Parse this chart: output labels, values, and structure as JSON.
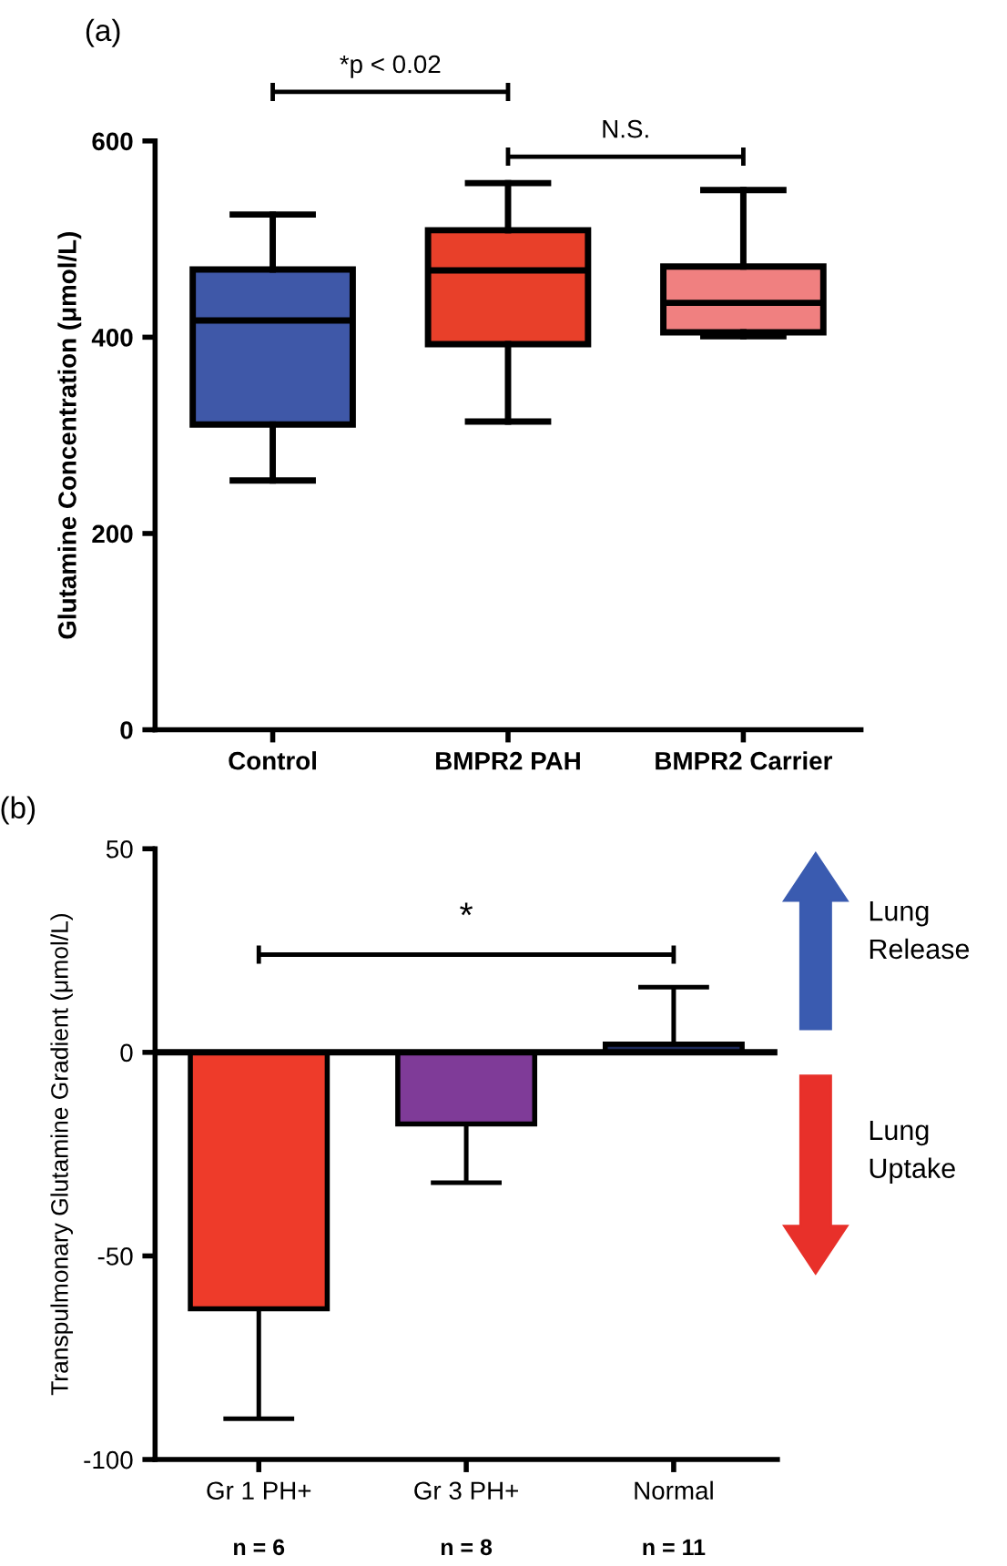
{
  "chart_data": [
    {
      "type": "box",
      "title": "(a)",
      "ylabel": "Glutamine Concentration (μmol/L)",
      "categories": [
        "Control",
        "BMPR2 PAH",
        "BMPR2 Carrier"
      ],
      "boxes": [
        {
          "low": 254,
          "q1": 311,
          "median": 417,
          "q3": 469,
          "high": 525
        },
        {
          "low": 314,
          "q1": 393,
          "median": 468,
          "q3": 509,
          "high": 557
        },
        {
          "low": 401,
          "q1": 405,
          "median": 435,
          "q3": 472,
          "high": 550
        }
      ],
      "colors": [
        "#3f58a8",
        "#e8402a",
        "#f08080"
      ],
      "ylim": [
        0,
        600
      ],
      "yticks": [
        0,
        200,
        400,
        600
      ],
      "annotations": [
        "*p < 0.02",
        "N.S."
      ]
    },
    {
      "type": "bar",
      "title": "(b)",
      "ylabel": "Transpulmonary Glutamine Gradient (μmol/L)",
      "categories": [
        "Gr 1 PH+",
        "Gr 3 PH+",
        "Normal"
      ],
      "values": [
        -63,
        -17.6,
        2
      ],
      "errors": [
        [
          -90,
          -63
        ],
        [
          -32,
          -17.6
        ],
        [
          2,
          16
        ]
      ],
      "colors": [
        "#ee3b2a",
        "#7f3b98",
        "#1e2a5a"
      ],
      "ylim": [
        -100,
        50
      ],
      "yticks": [
        -100,
        -50,
        0,
        50
      ],
      "ref_lines": [
        {
          "axis": "y",
          "value": 0
        }
      ],
      "annotations": [
        "*",
        "Lung\nRelease",
        "Lung\nUptake",
        "n = 6",
        "n = 8",
        "n = 11"
      ]
    }
  ]
}
